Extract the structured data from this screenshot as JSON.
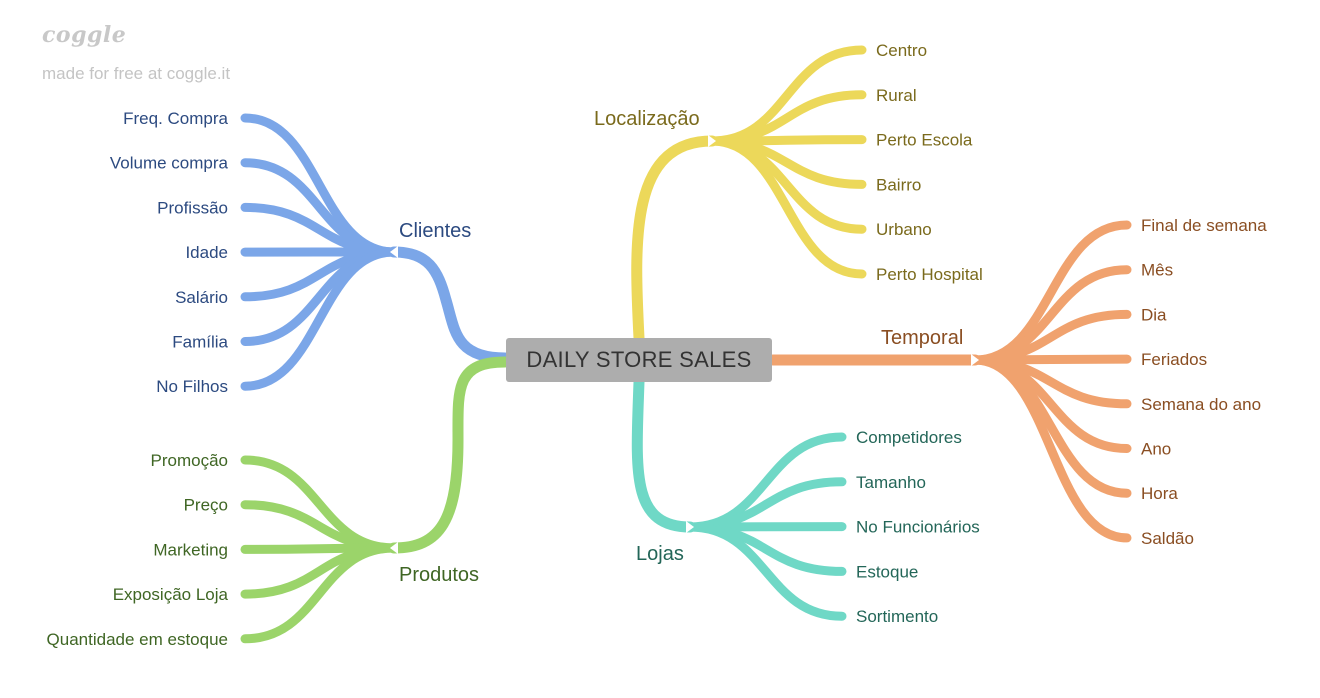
{
  "watermark": {
    "logo": "coggle",
    "tagline": "made for free at coggle.it"
  },
  "center": {
    "label": "DAILY STORE SALES",
    "color": "#adadad"
  },
  "branches": {
    "clientes": {
      "label": "Clientes",
      "color": "#7ba6e8",
      "text_color": "#2c4a80",
      "children": [
        "Freq. Compra",
        "Volume compra",
        "Profissão",
        "Idade",
        "Salário",
        "Família",
        "No Filhos"
      ]
    },
    "produtos": {
      "label": "Produtos",
      "color": "#9bd46a",
      "text_color": "#3f6624",
      "children": [
        "Promoção",
        "Preço",
        "Marketing",
        "Exposição Loja",
        "Quantidade em estoque"
      ]
    },
    "localizacao": {
      "label": "Localização",
      "color": "#ecd85a",
      "text_color": "#7a6a1c",
      "children": [
        "Centro",
        "Rural",
        "Perto Escola",
        "Bairro",
        "Urbano",
        "Perto Hospital"
      ]
    },
    "temporal": {
      "label": "Temporal",
      "color": "#f0a26e",
      "text_color": "#8a4e22",
      "children": [
        "Final de semana",
        "Mês",
        "Dia",
        "Feriados",
        "Semana do ano",
        "Ano",
        "Hora",
        "Saldão"
      ]
    },
    "lojas": {
      "label": "Lojas",
      "color": "#6fd8c6",
      "text_color": "#236658",
      "children": [
        "Competidores",
        "Tamanho",
        "No Funcionários",
        "Estoque",
        "Sortimento"
      ]
    }
  }
}
